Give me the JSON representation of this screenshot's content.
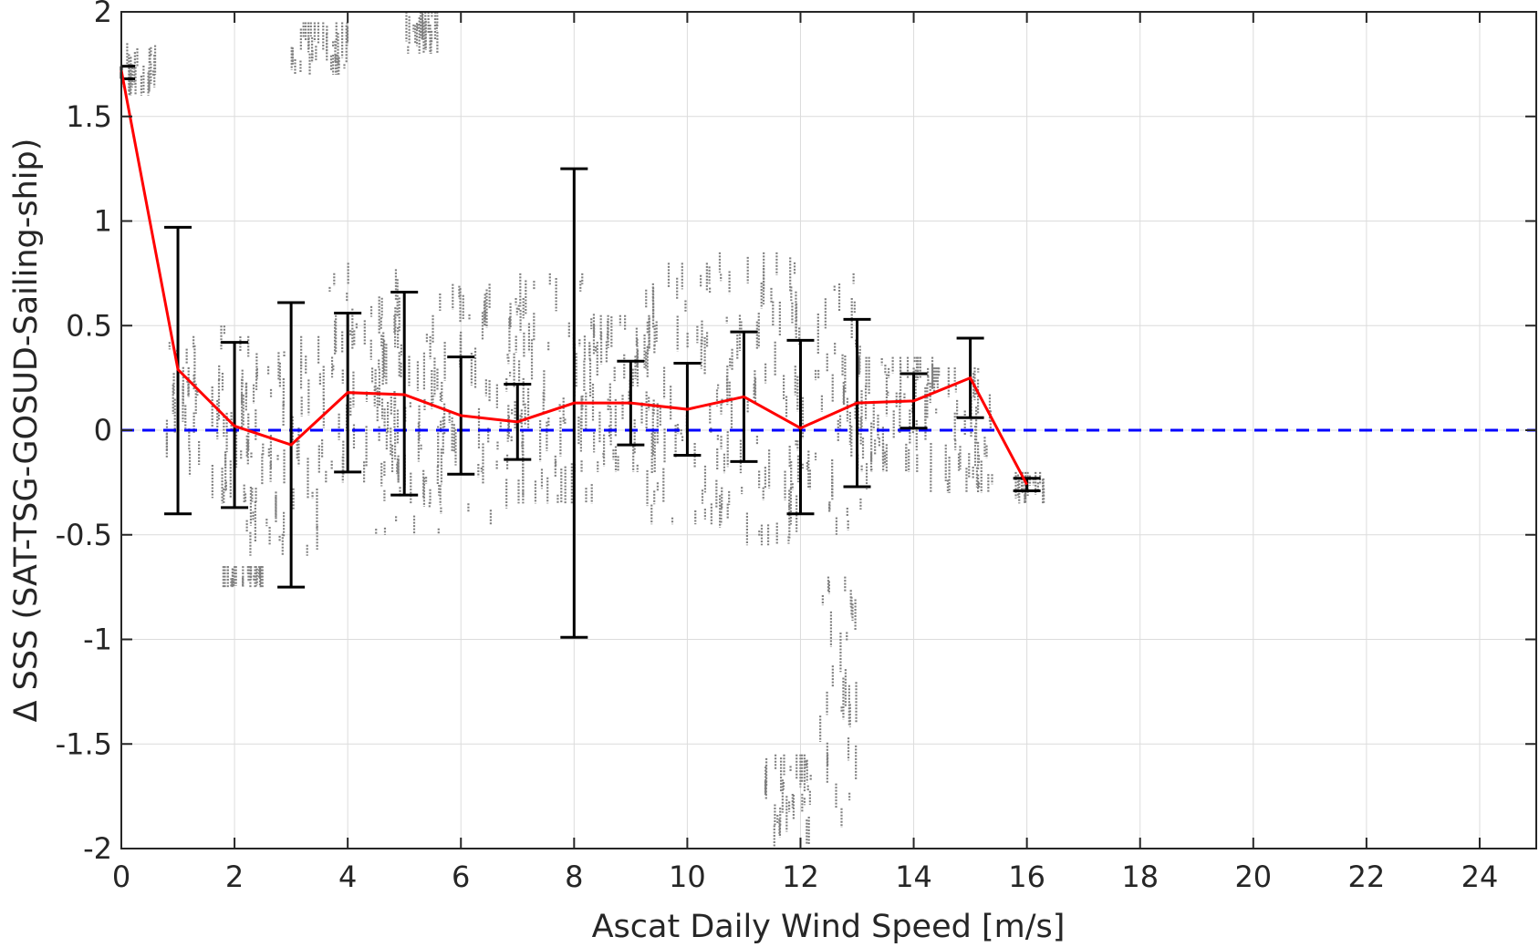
{
  "chart_data": {
    "type": "scatter",
    "title": "",
    "xlabel": "Ascat Daily Wind Speed [m/s]",
    "ylabel": "Δ SSS (SAT-TSG-GOSUD-Sailing-ship)",
    "xlim": [
      0,
      25
    ],
    "ylim": [
      -2,
      2
    ],
    "grid": true,
    "xticks": [
      "0",
      "2",
      "4",
      "6",
      "8",
      "10",
      "12",
      "14",
      "16",
      "18",
      "20",
      "22",
      "24"
    ],
    "yticks": [
      "2",
      "1.5",
      "1",
      "0.5",
      "0",
      "-0.5",
      "-1",
      "-1.5",
      "-2"
    ],
    "reference_line": {
      "y": 0,
      "color": "#0000ff",
      "style": "dashed"
    },
    "mean_series": {
      "color": "#ff0000",
      "x": [
        0,
        1,
        2,
        3,
        4,
        5,
        6,
        7,
        8,
        9,
        10,
        11,
        12,
        13,
        14,
        15,
        16
      ],
      "y": [
        1.72,
        0.29,
        0.02,
        -0.07,
        0.18,
        0.17,
        0.07,
        0.04,
        0.13,
        0.13,
        0.1,
        0.16,
        0.01,
        0.13,
        0.14,
        0.25,
        -0.26
      ]
    },
    "error_bars": {
      "color": "#000000",
      "x": [
        0,
        1,
        2,
        3,
        4,
        5,
        6,
        7,
        8,
        9,
        10,
        11,
        12,
        13,
        14,
        15,
        16
      ],
      "upper": [
        1.74,
        0.97,
        0.42,
        0.61,
        0.56,
        0.66,
        0.35,
        0.22,
        1.25,
        0.33,
        0.32,
        0.47,
        0.43,
        0.53,
        0.27,
        0.44,
        -0.23
      ],
      "lower": [
        1.68,
        -0.4,
        -0.37,
        -0.75,
        -0.2,
        -0.31,
        -0.21,
        -0.14,
        -0.99,
        -0.07,
        -0.12,
        -0.15,
        -0.4,
        -0.27,
        0.01,
        0.06,
        -0.29
      ]
    },
    "scatter_color": "#808080",
    "scatter_clusters": [
      {
        "x": [
          0.0,
          0.6
        ],
        "y": [
          1.6,
          1.85
        ]
      },
      {
        "x": [
          0.8,
          1.4
        ],
        "y": [
          -0.25,
          0.45
        ]
      },
      {
        "x": [
          1.5,
          2.4
        ],
        "y": [
          -0.35,
          0.5
        ]
      },
      {
        "x": [
          1.8,
          2.5
        ],
        "y": [
          -0.75,
          -0.65
        ]
      },
      {
        "x": [
          2.2,
          3.6
        ],
        "y": [
          -0.6,
          0.45
        ]
      },
      {
        "x": [
          3.0,
          4.0
        ],
        "y": [
          1.7,
          1.95
        ]
      },
      {
        "x": [
          3.6,
          5.0
        ],
        "y": [
          -0.25,
          0.8
        ]
      },
      {
        "x": [
          4.5,
          5.8
        ],
        "y": [
          -0.5,
          0.55
        ]
      },
      {
        "x": [
          5.0,
          5.6
        ],
        "y": [
          1.8,
          2.0
        ]
      },
      {
        "x": [
          5.5,
          7.2
        ],
        "y": [
          -0.45,
          0.7
        ]
      },
      {
        "x": [
          6.8,
          8.4
        ],
        "y": [
          -0.35,
          0.75
        ]
      },
      {
        "x": [
          8.0,
          9.6
        ],
        "y": [
          -0.2,
          0.55
        ]
      },
      {
        "x": [
          9.2,
          10.8
        ],
        "y": [
          -0.45,
          0.8
        ]
      },
      {
        "x": [
          10.5,
          12.0
        ],
        "y": [
          -0.55,
          0.85
        ]
      },
      {
        "x": [
          11.8,
          13.2
        ],
        "y": [
          -0.5,
          0.75
        ]
      },
      {
        "x": [
          13.0,
          14.4
        ],
        "y": [
          -0.2,
          0.35
        ]
      },
      {
        "x": [
          14.2,
          15.4
        ],
        "y": [
          -0.3,
          0.3
        ]
      },
      {
        "x": [
          15.8,
          16.3
        ],
        "y": [
          -0.35,
          -0.2
        ]
      },
      {
        "x": [
          12.3,
          13.0
        ],
        "y": [
          -1.9,
          -0.7
        ]
      },
      {
        "x": [
          11.3,
          12.2
        ],
        "y": [
          -2.0,
          -1.55
        ]
      }
    ]
  }
}
